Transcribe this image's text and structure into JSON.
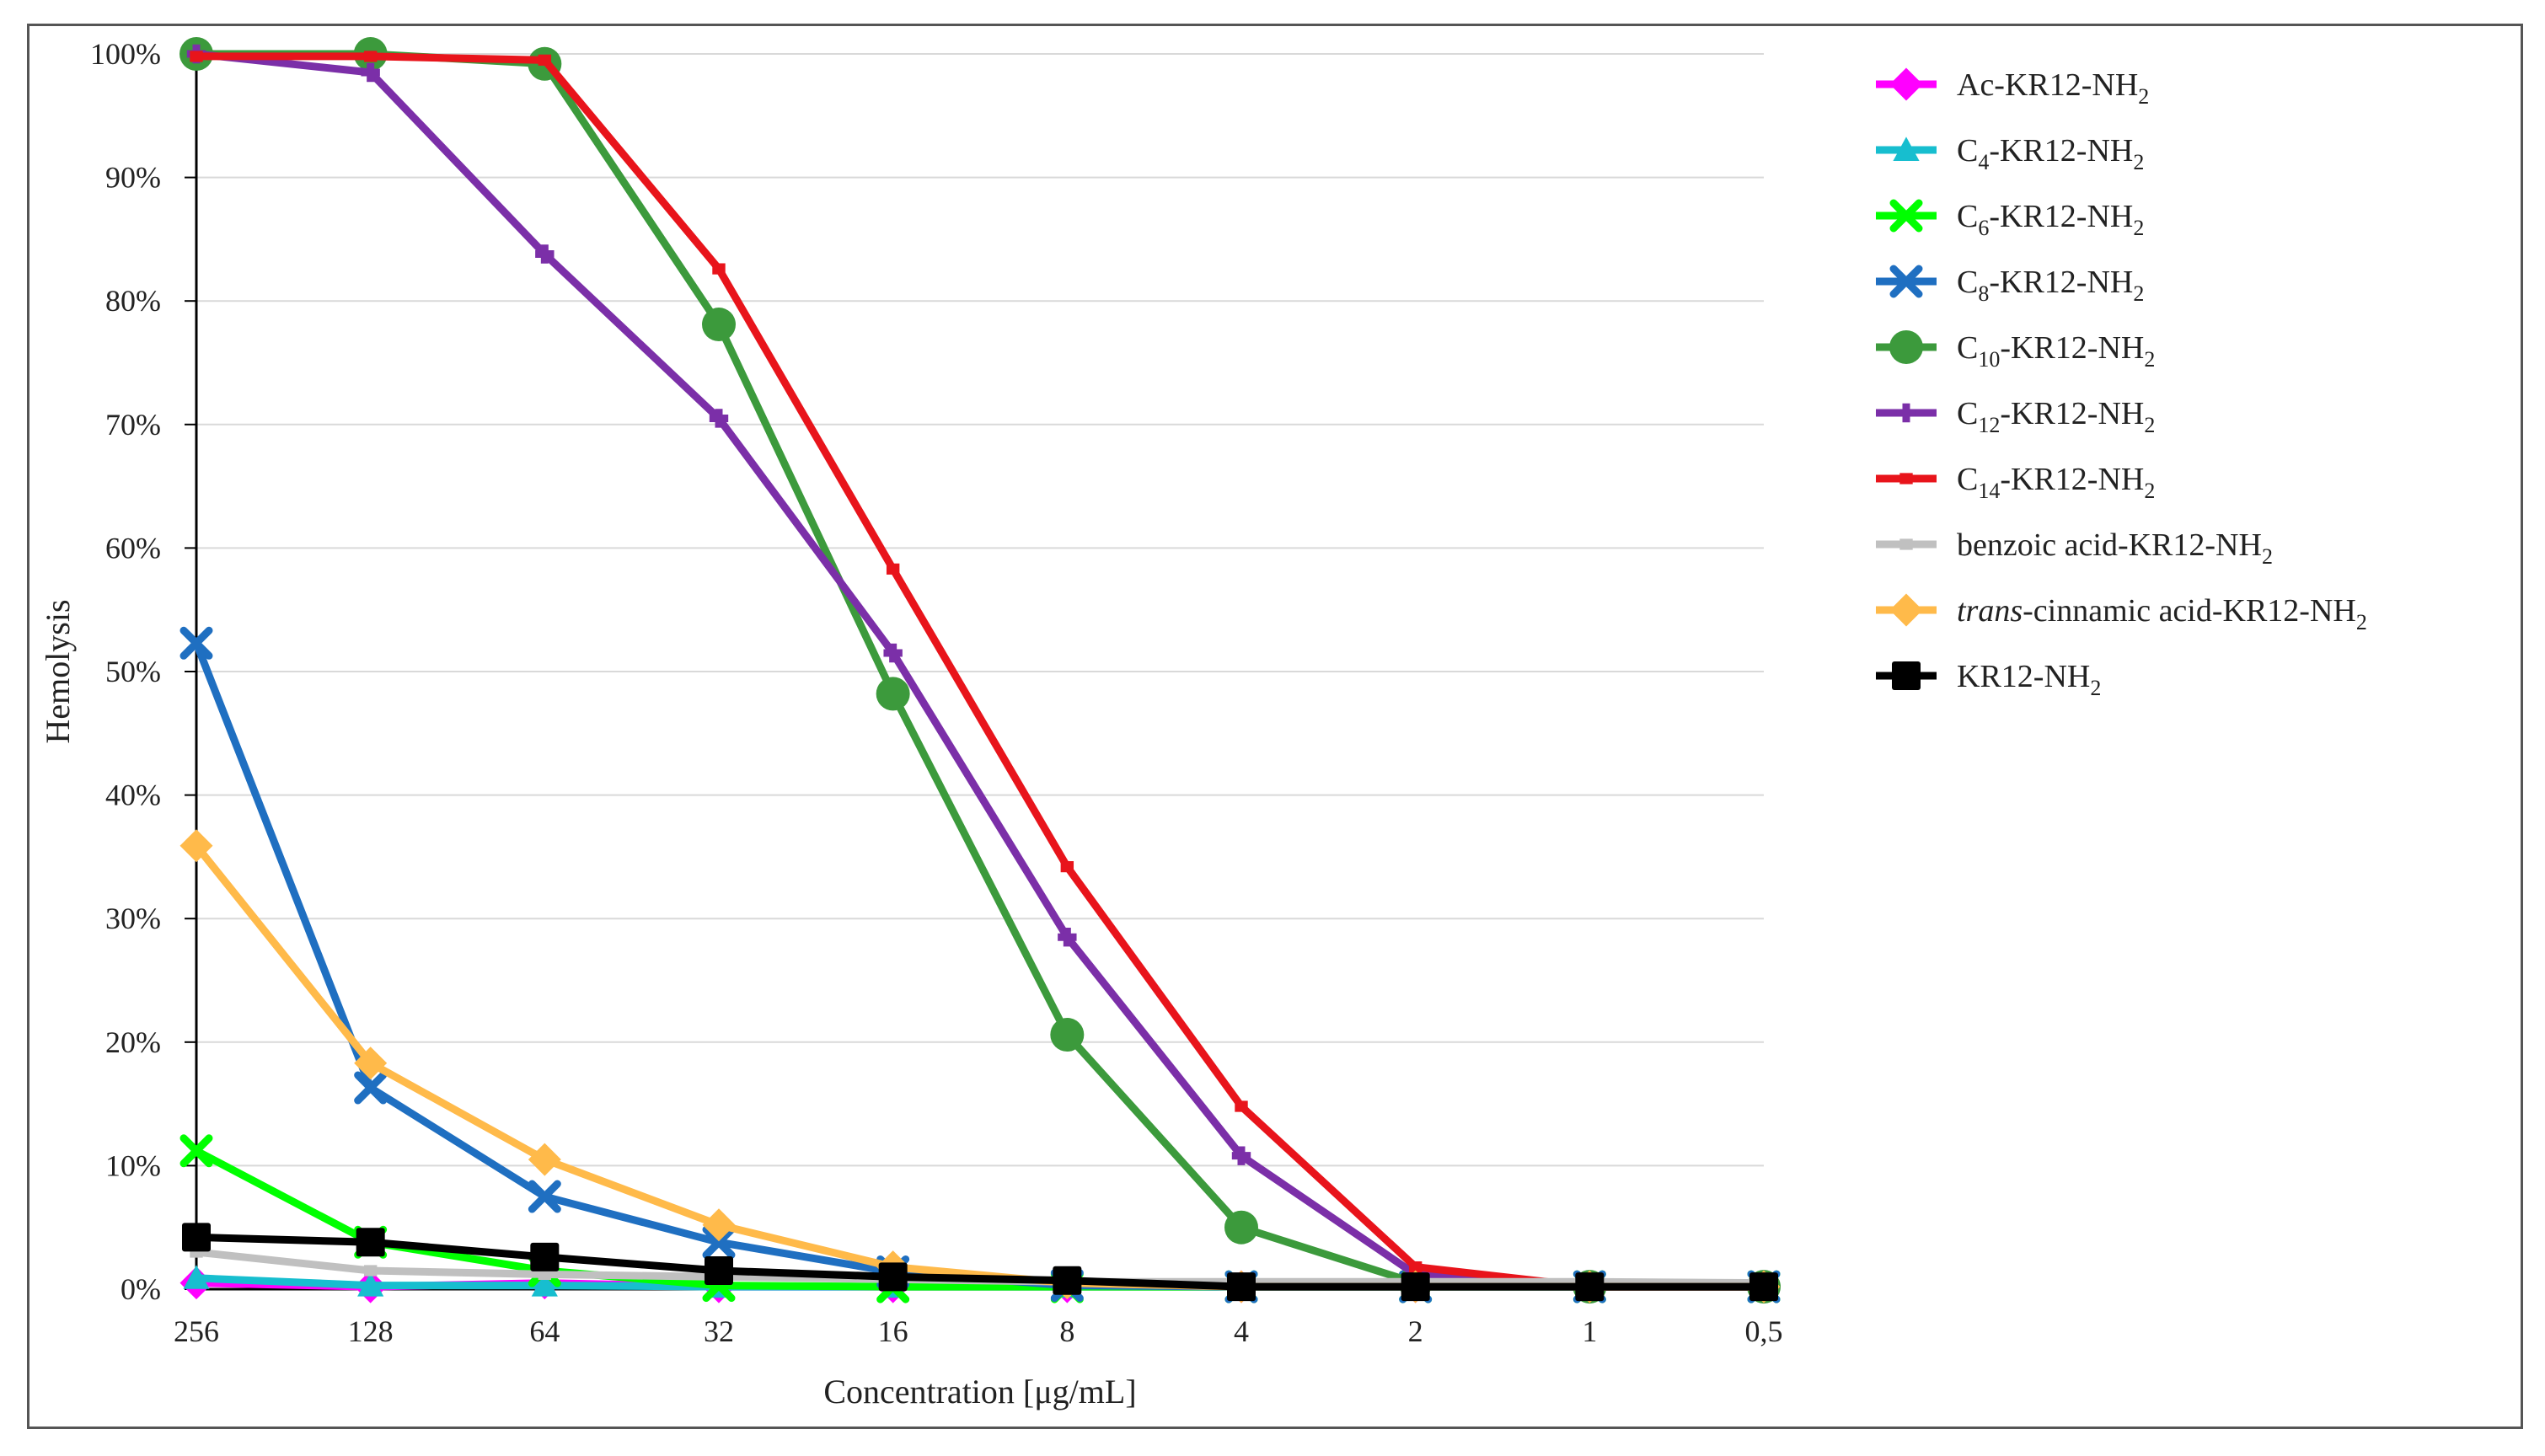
{
  "chart_data": {
    "type": "line",
    "xlabel": "Concentration [μg/mL]",
    "ylabel": "Hemolysis",
    "categories": [
      "256",
      "128",
      "64",
      "32",
      "16",
      "8",
      "4",
      "2",
      "1",
      "0,5"
    ],
    "ylim": [
      0,
      100
    ],
    "ytick_labels": [
      "0%",
      "10%",
      "20%",
      "30%",
      "40%",
      "50%",
      "60%",
      "70%",
      "80%",
      "90%",
      "100%"
    ],
    "grid": true,
    "legend_position": "right",
    "series": [
      {
        "name": "Ac-KR12-NH2",
        "label": {
          "pre": "Ac-KR12-NH",
          "sub": "2",
          "post": ""
        },
        "color": "#ff00ff",
        "marker": "diamond",
        "values": [
          0.5,
          0.2,
          0.5,
          0.2,
          0.2,
          0.2,
          0.2,
          0.2,
          0.2,
          0.2
        ]
      },
      {
        "name": "C4-KR12-NH2",
        "label": {
          "pre": "C",
          "sub": "4",
          "post": "-KR12-NH",
          "sub2": "2"
        },
        "color": "#17becf",
        "marker": "triangle",
        "values": [
          0.9,
          0.3,
          0.3,
          0.2,
          0.2,
          0.2,
          0.2,
          0.2,
          0.2,
          0.2
        ]
      },
      {
        "name": "C6-KR12-NH2",
        "label": {
          "pre": "C",
          "sub": "6",
          "post": "-KR12-NH",
          "sub2": "2"
        },
        "color": "#00ff00",
        "marker": "x",
        "values": [
          11.2,
          3.8,
          1.5,
          0.3,
          0.2,
          0.2,
          0.2,
          0.2,
          0.2,
          0.2
        ]
      },
      {
        "name": "C8-KR12-NH2",
        "label": {
          "pre": "C",
          "sub": "8",
          "post": "-KR12-NH",
          "sub2": "2"
        },
        "color": "#1f6fc1",
        "marker": "x",
        "values": [
          52.3,
          16.3,
          7.5,
          3.8,
          1.4,
          0.3,
          0.2,
          0.2,
          0.2,
          0.2
        ]
      },
      {
        "name": "C10-KR12-NH2",
        "label": {
          "pre": "C",
          "sub": "10",
          "post": "-KR12-NH",
          "sub2": "2"
        },
        "color": "#3c9a3c",
        "marker": "circle",
        "values": [
          100,
          100,
          99.2,
          78.1,
          48.2,
          20.6,
          5.0,
          0.5,
          0.2,
          0.2
        ]
      },
      {
        "name": "C12-KR12-NH2",
        "label": {
          "pre": "C",
          "sub": "12",
          "post": "-KR12-NH",
          "sub2": "2"
        },
        "color": "#7b2fa8",
        "marker": "plus",
        "values": [
          100,
          98.5,
          83.8,
          70.5,
          51.5,
          28.5,
          10.8,
          1.2,
          0.2,
          0.2
        ]
      },
      {
        "name": "C14-KR12-NH2",
        "label": {
          "pre": "C",
          "sub": "14",
          "post": "-KR12-NH",
          "sub2": "2"
        },
        "color": "#e8141b",
        "marker": "dash",
        "values": [
          99.8,
          99.8,
          99.5,
          82.6,
          58.3,
          34.2,
          14.8,
          1.8,
          0.2,
          0.2
        ]
      },
      {
        "name": "benzoic acid-KR12-NH2",
        "label": {
          "pre": "benzoic acid-KR12-NH",
          "sub": "2",
          "post": ""
        },
        "color": "#c0c0c0",
        "marker": "dash",
        "values": [
          3.0,
          1.5,
          1.2,
          1.0,
          0.8,
          0.6,
          0.6,
          0.6,
          0.6,
          0.5
        ]
      },
      {
        "name": "trans-cinnamic acid-KR12-NH2",
        "label": {
          "italic": "trans",
          "pre": "-cinnamic acid-KR12-NH",
          "sub": "2",
          "post": ""
        },
        "color": "#ffba4a",
        "marker": "diamond",
        "values": [
          35.9,
          18.3,
          10.5,
          5.2,
          1.8,
          0.5,
          0.2,
          0.2,
          0.2,
          0.2
        ]
      },
      {
        "name": "KR12-NH2",
        "label": {
          "pre": "KR12-NH",
          "sub": "2",
          "post": ""
        },
        "color": "#000000",
        "marker": "square",
        "values": [
          4.2,
          3.8,
          2.6,
          1.5,
          1.0,
          0.7,
          0.2,
          0.2,
          0.2,
          0.2
        ]
      }
    ]
  }
}
